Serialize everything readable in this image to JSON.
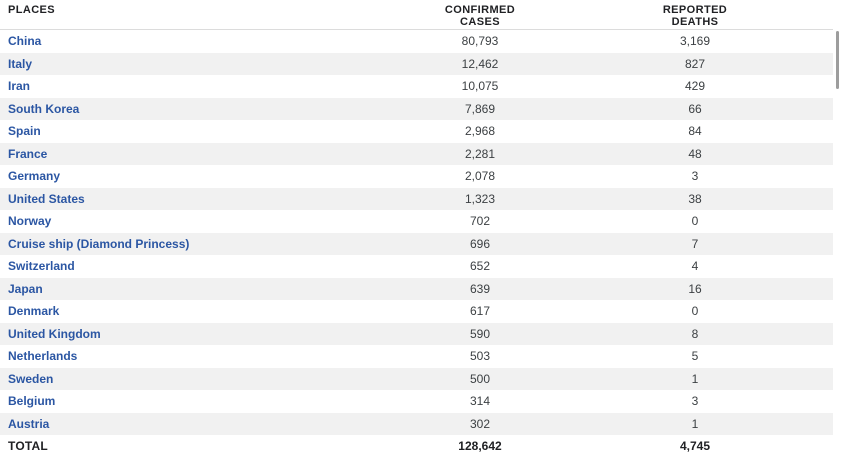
{
  "table": {
    "header": {
      "places": "PLACES",
      "cases_line1": "CONFIRMED",
      "cases_line2": "CASES",
      "deaths_line1": "REPORTED",
      "deaths_line2": "DEATHS"
    },
    "rows": [
      {
        "place": "China",
        "cases": "80,793",
        "deaths": "3,169"
      },
      {
        "place": "Italy",
        "cases": "12,462",
        "deaths": "827"
      },
      {
        "place": "Iran",
        "cases": "10,075",
        "deaths": "429"
      },
      {
        "place": "South Korea",
        "cases": "7,869",
        "deaths": "66"
      },
      {
        "place": "Spain",
        "cases": "2,968",
        "deaths": "84"
      },
      {
        "place": "France",
        "cases": "2,281",
        "deaths": "48"
      },
      {
        "place": "Germany",
        "cases": "2,078",
        "deaths": "3"
      },
      {
        "place": "United States",
        "cases": "1,323",
        "deaths": "38"
      },
      {
        "place": "Norway",
        "cases": "702",
        "deaths": "0"
      },
      {
        "place": "Cruise ship (Diamond Princess)",
        "cases": "696",
        "deaths": "7"
      },
      {
        "place": "Switzerland",
        "cases": "652",
        "deaths": "4"
      },
      {
        "place": "Japan",
        "cases": "639",
        "deaths": "16"
      },
      {
        "place": "Denmark",
        "cases": "617",
        "deaths": "0"
      },
      {
        "place": "United Kingdom",
        "cases": "590",
        "deaths": "8"
      },
      {
        "place": "Netherlands",
        "cases": "503",
        "deaths": "5"
      },
      {
        "place": "Sweden",
        "cases": "500",
        "deaths": "1"
      },
      {
        "place": "Belgium",
        "cases": "314",
        "deaths": "3"
      },
      {
        "place": "Austria",
        "cases": "302",
        "deaths": "1"
      }
    ],
    "total": {
      "label": "TOTAL",
      "cases": "128,642",
      "deaths": "4,745"
    }
  },
  "colors": {
    "link": "#2b56a3",
    "stripe": "#f1f1f1",
    "header_text": "#202124",
    "number_text": "#3c4043",
    "scrollbar_thumb": "#9d9d9d",
    "header_border": "#dcdcdc"
  }
}
